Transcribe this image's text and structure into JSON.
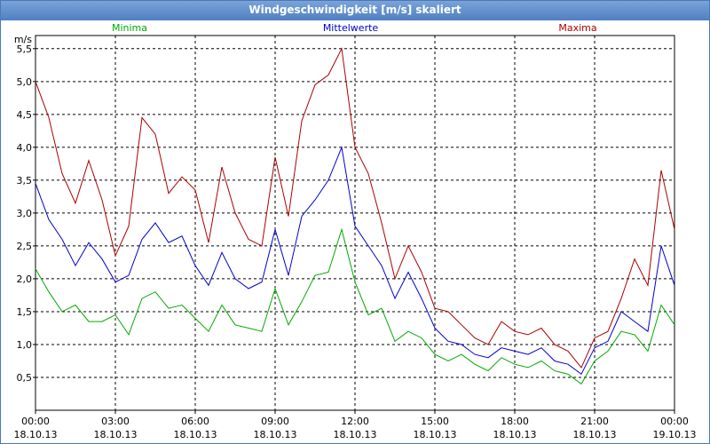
{
  "window": {
    "title": "Windgeschwindigkeit [m/s] skaliert"
  },
  "chart_data": {
    "type": "line",
    "title": "Windgeschwindigkeit [m/s] skaliert",
    "ylabel": "m/s",
    "ylim": [
      0.0,
      5.7
    ],
    "yticks": [
      "0,5",
      "1,0",
      "1,5",
      "2,0",
      "2,5",
      "3,0",
      "3,5",
      "4,0",
      "4,5",
      "5,0",
      "5,5"
    ],
    "xticks": [
      {
        "time": "00:00",
        "date": "18.10.13"
      },
      {
        "time": "03:00",
        "date": "18.10.13"
      },
      {
        "time": "06:00",
        "date": "18.10.13"
      },
      {
        "time": "09:00",
        "date": "18.10.13"
      },
      {
        "time": "12:00",
        "date": "18.10.13"
      },
      {
        "time": "15:00",
        "date": "18.10.13"
      },
      {
        "time": "18:00",
        "date": "18.10.13"
      },
      {
        "time": "21:00",
        "date": "18.10.13"
      },
      {
        "time": "00:00",
        "date": "19.10.13"
      }
    ],
    "grid": true,
    "legend_position": "top",
    "x_hours": [
      0,
      0.5,
      1,
      1.5,
      2,
      2.5,
      3,
      3.5,
      4,
      4.5,
      5,
      5.5,
      6,
      6.5,
      7,
      7.5,
      8,
      8.5,
      9,
      9.5,
      10,
      10.5,
      11,
      11.5,
      12,
      12.5,
      13,
      13.5,
      14,
      14.5,
      15,
      15.5,
      16,
      16.5,
      17,
      17.5,
      18,
      18.5,
      19,
      19.5,
      20,
      20.5,
      21,
      21.5,
      22,
      22.5,
      23,
      23.5,
      24
    ],
    "series": [
      {
        "name": "Minima",
        "color": "#00aa00",
        "values": [
          2.15,
          1.8,
          1.5,
          1.6,
          1.35,
          1.35,
          1.45,
          1.15,
          1.7,
          1.8,
          1.55,
          1.6,
          1.4,
          1.2,
          1.6,
          1.3,
          1.25,
          1.2,
          1.85,
          1.3,
          1.65,
          2.05,
          2.1,
          2.75,
          1.95,
          1.45,
          1.55,
          1.05,
          1.2,
          1.1,
          0.85,
          0.75,
          0.85,
          0.7,
          0.6,
          0.8,
          0.7,
          0.65,
          0.75,
          0.6,
          0.55,
          0.4,
          0.75,
          0.9,
          1.2,
          1.15,
          0.9,
          1.6,
          1.3
        ]
      },
      {
        "name": "Mittelwerte",
        "color": "#0000cc",
        "values": [
          3.45,
          2.9,
          2.6,
          2.2,
          2.55,
          2.3,
          1.95,
          2.05,
          2.6,
          2.85,
          2.55,
          2.65,
          2.2,
          1.9,
          2.4,
          2.0,
          1.85,
          1.95,
          2.75,
          2.05,
          2.95,
          3.2,
          3.5,
          4.0,
          2.8,
          2.5,
          2.2,
          1.7,
          2.1,
          1.7,
          1.25,
          1.05,
          1.0,
          0.85,
          0.8,
          0.95,
          0.9,
          0.85,
          0.95,
          0.75,
          0.7,
          0.55,
          0.95,
          1.05,
          1.5,
          1.35,
          1.2,
          2.5,
          1.9
        ]
      },
      {
        "name": "Maxima",
        "color": "#aa0000",
        "values": [
          5.0,
          4.45,
          3.6,
          3.15,
          3.8,
          3.2,
          2.35,
          2.8,
          4.45,
          4.2,
          3.3,
          3.55,
          3.35,
          2.55,
          3.7,
          3.0,
          2.6,
          2.5,
          3.85,
          2.95,
          4.4,
          4.95,
          5.1,
          5.5,
          4.0,
          3.6,
          2.85,
          2.0,
          2.5,
          2.1,
          1.55,
          1.5,
          1.3,
          1.1,
          1.0,
          1.35,
          1.2,
          1.15,
          1.25,
          1.0,
          0.9,
          0.65,
          1.1,
          1.2,
          1.7,
          2.3,
          1.9,
          3.65,
          2.75
        ]
      }
    ]
  }
}
